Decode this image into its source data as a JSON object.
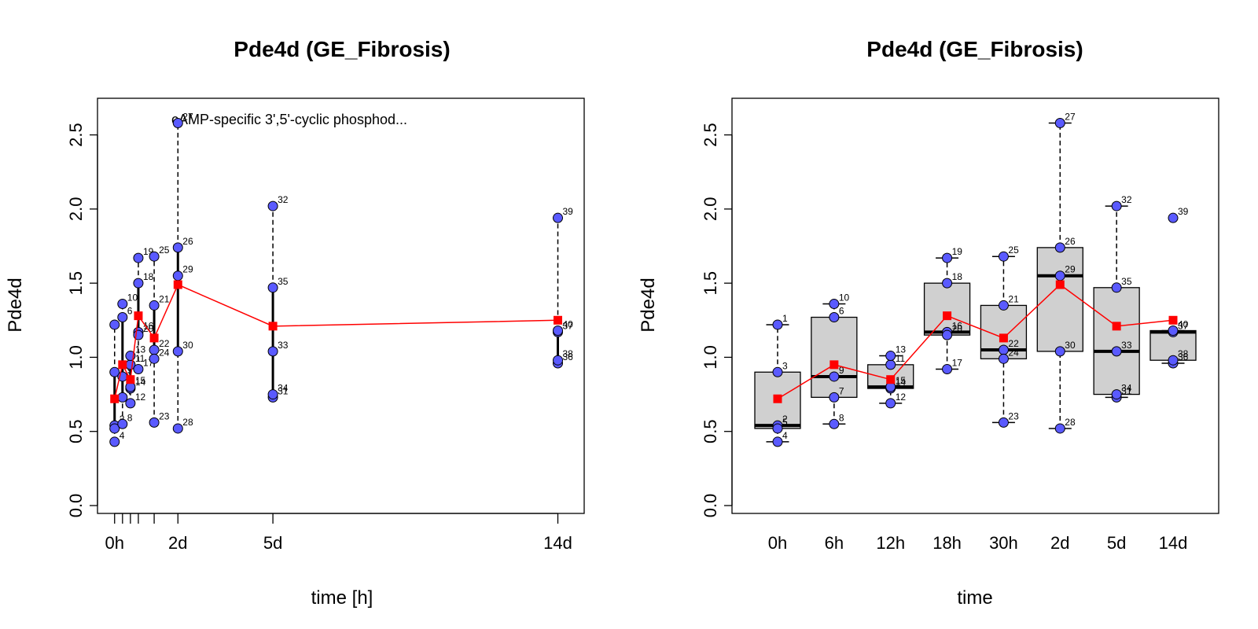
{
  "colors": {
    "point": "#5a5aff",
    "mean": "#ff0000",
    "box": "#d0d0d0"
  },
  "chart_data": [
    {
      "type": "scatter",
      "title": "Pde4d (GE_Fibrosis)",
      "xlabel": "time [h]",
      "ylabel": "Pde4d",
      "annotation": "cAMP-specific 3',5'-cyclic phosphod...",
      "xlim": [
        -7,
        350
      ],
      "ylim": [
        0,
        2.8
      ],
      "x_ticks": [
        0,
        6,
        12,
        18,
        30,
        48,
        120,
        336
      ],
      "x_tick_labels": {
        "0": "0h",
        "48": "2d",
        "120": "5d",
        "336": "14d"
      },
      "y_ticks": [
        0.0,
        0.5,
        1.0,
        1.5,
        2.0,
        2.5
      ],
      "y_tick_labels": [
        "0.0",
        "0.5",
        "1.0",
        "1.5",
        "2.0",
        "2.5"
      ],
      "points": [
        {
          "id": "1",
          "x": 0,
          "y": 1.22
        },
        {
          "id": "2",
          "x": 0,
          "y": 0.54
        },
        {
          "id": "3",
          "x": 0,
          "y": 0.9
        },
        {
          "id": "4",
          "x": 0,
          "y": 0.43
        },
        {
          "id": "5",
          "x": 0,
          "y": 0.52
        },
        {
          "id": "6",
          "x": 6,
          "y": 1.27
        },
        {
          "id": "7",
          "x": 6,
          "y": 0.73
        },
        {
          "id": "8",
          "x": 6,
          "y": 0.55
        },
        {
          "id": "9",
          "x": 6,
          "y": 0.87
        },
        {
          "id": "10",
          "x": 6,
          "y": 1.36
        },
        {
          "id": "11",
          "x": 12,
          "y": 0.95
        },
        {
          "id": "12",
          "x": 12,
          "y": 0.69
        },
        {
          "id": "13",
          "x": 12,
          "y": 1.01
        },
        {
          "id": "14",
          "x": 12,
          "y": 0.79
        },
        {
          "id": "15",
          "x": 12,
          "y": 0.8
        },
        {
          "id": "16",
          "x": 18,
          "y": 1.17
        },
        {
          "id": "17",
          "x": 18,
          "y": 0.92
        },
        {
          "id": "18",
          "x": 18,
          "y": 1.5
        },
        {
          "id": "19",
          "x": 18,
          "y": 1.67
        },
        {
          "id": "20",
          "x": 18,
          "y": 1.15
        },
        {
          "id": "21",
          "x": 30,
          "y": 1.35
        },
        {
          "id": "22",
          "x": 30,
          "y": 1.05
        },
        {
          "id": "23",
          "x": 30,
          "y": 0.56
        },
        {
          "id": "24",
          "x": 30,
          "y": 0.99
        },
        {
          "id": "25",
          "x": 30,
          "y": 1.68
        },
        {
          "id": "26",
          "x": 48,
          "y": 1.74
        },
        {
          "id": "27",
          "x": 48,
          "y": 2.58
        },
        {
          "id": "28",
          "x": 48,
          "y": 0.52
        },
        {
          "id": "29",
          "x": 48,
          "y": 1.55
        },
        {
          "id": "30",
          "x": 48,
          "y": 1.04
        },
        {
          "id": "31",
          "x": 120,
          "y": 0.73
        },
        {
          "id": "32",
          "x": 120,
          "y": 2.02
        },
        {
          "id": "33",
          "x": 120,
          "y": 1.04
        },
        {
          "id": "34",
          "x": 120,
          "y": 0.75
        },
        {
          "id": "35",
          "x": 120,
          "y": 1.47
        },
        {
          "id": "36",
          "x": 336,
          "y": 0.96
        },
        {
          "id": "37",
          "x": 336,
          "y": 1.17
        },
        {
          "id": "38",
          "x": 336,
          "y": 0.98
        },
        {
          "id": "39",
          "x": 336,
          "y": 1.94
        },
        {
          "id": "40",
          "x": 336,
          "y": 1.18
        }
      ],
      "mean_line": {
        "x": [
          0,
          6,
          12,
          18,
          30,
          48,
          120,
          336
        ],
        "y": [
          0.72,
          0.95,
          0.85,
          1.28,
          1.13,
          1.49,
          1.21,
          1.25
        ]
      }
    },
    {
      "type": "box",
      "title": "Pde4d (GE_Fibrosis)",
      "xlabel": "time",
      "ylabel": "Pde4d",
      "ylim": [
        0,
        2.8
      ],
      "categories": [
        "0h",
        "6h",
        "12h",
        "18h",
        "30h",
        "2d",
        "5d",
        "14d"
      ],
      "y_ticks": [
        0.0,
        0.5,
        1.0,
        1.5,
        2.0,
        2.5
      ],
      "y_tick_labels": [
        "0.0",
        "0.5",
        "1.0",
        "1.5",
        "2.0",
        "2.5"
      ],
      "boxes": [
        {
          "min": 0.43,
          "q1": 0.52,
          "median": 0.54,
          "q3": 0.9,
          "max": 1.22
        },
        {
          "min": 0.55,
          "q1": 0.73,
          "median": 0.87,
          "q3": 1.27,
          "max": 1.36
        },
        {
          "min": 0.69,
          "q1": 0.79,
          "median": 0.8,
          "q3": 0.95,
          "max": 1.01
        },
        {
          "min": 0.92,
          "q1": 1.15,
          "median": 1.17,
          "q3": 1.5,
          "max": 1.67
        },
        {
          "min": 0.56,
          "q1": 0.99,
          "median": 1.05,
          "q3": 1.35,
          "max": 1.68
        },
        {
          "min": 0.52,
          "q1": 1.04,
          "median": 1.55,
          "q3": 1.74,
          "max": 2.58
        },
        {
          "min": 0.73,
          "q1": 0.75,
          "median": 1.04,
          "q3": 1.47,
          "max": 2.02
        },
        {
          "min": 0.96,
          "q1": 0.98,
          "median": 1.17,
          "q3": 1.18,
          "max": 1.18
        }
      ],
      "points": [
        {
          "id": "1",
          "group": 0,
          "y": 1.22
        },
        {
          "id": "2",
          "group": 0,
          "y": 0.54
        },
        {
          "id": "3",
          "group": 0,
          "y": 0.9
        },
        {
          "id": "4",
          "group": 0,
          "y": 0.43
        },
        {
          "id": "5",
          "group": 0,
          "y": 0.52
        },
        {
          "id": "6",
          "group": 1,
          "y": 1.27
        },
        {
          "id": "7",
          "group": 1,
          "y": 0.73
        },
        {
          "id": "8",
          "group": 1,
          "y": 0.55
        },
        {
          "id": "9",
          "group": 1,
          "y": 0.87
        },
        {
          "id": "10",
          "group": 1,
          "y": 1.36
        },
        {
          "id": "11",
          "group": 2,
          "y": 0.95
        },
        {
          "id": "12",
          "group": 2,
          "y": 0.69
        },
        {
          "id": "13",
          "group": 2,
          "y": 1.01
        },
        {
          "id": "14",
          "group": 2,
          "y": 0.79
        },
        {
          "id": "15",
          "group": 2,
          "y": 0.8
        },
        {
          "id": "16",
          "group": 3,
          "y": 1.17
        },
        {
          "id": "17",
          "group": 3,
          "y": 0.92
        },
        {
          "id": "18",
          "group": 3,
          "y": 1.5
        },
        {
          "id": "19",
          "group": 3,
          "y": 1.67
        },
        {
          "id": "20",
          "group": 3,
          "y": 1.15
        },
        {
          "id": "21",
          "group": 4,
          "y": 1.35
        },
        {
          "id": "22",
          "group": 4,
          "y": 1.05
        },
        {
          "id": "23",
          "group": 4,
          "y": 0.56
        },
        {
          "id": "24",
          "group": 4,
          "y": 0.99
        },
        {
          "id": "25",
          "group": 4,
          "y": 1.68
        },
        {
          "id": "26",
          "group": 5,
          "y": 1.74
        },
        {
          "id": "27",
          "group": 5,
          "y": 2.58
        },
        {
          "id": "28",
          "group": 5,
          "y": 0.52
        },
        {
          "id": "29",
          "group": 5,
          "y": 1.55
        },
        {
          "id": "30",
          "group": 5,
          "y": 1.04
        },
        {
          "id": "31",
          "group": 6,
          "y": 0.73
        },
        {
          "id": "32",
          "group": 6,
          "y": 2.02
        },
        {
          "id": "33",
          "group": 6,
          "y": 1.04
        },
        {
          "id": "34",
          "group": 6,
          "y": 0.75
        },
        {
          "id": "35",
          "group": 6,
          "y": 1.47
        },
        {
          "id": "36",
          "group": 7,
          "y": 0.96
        },
        {
          "id": "37",
          "group": 7,
          "y": 1.17
        },
        {
          "id": "38",
          "group": 7,
          "y": 0.98
        },
        {
          "id": "39",
          "group": 7,
          "y": 1.94
        },
        {
          "id": "40",
          "group": 7,
          "y": 1.18
        }
      ],
      "mean_line": {
        "y": [
          0.72,
          0.95,
          0.85,
          1.28,
          1.13,
          1.49,
          1.21,
          1.25
        ]
      }
    }
  ]
}
